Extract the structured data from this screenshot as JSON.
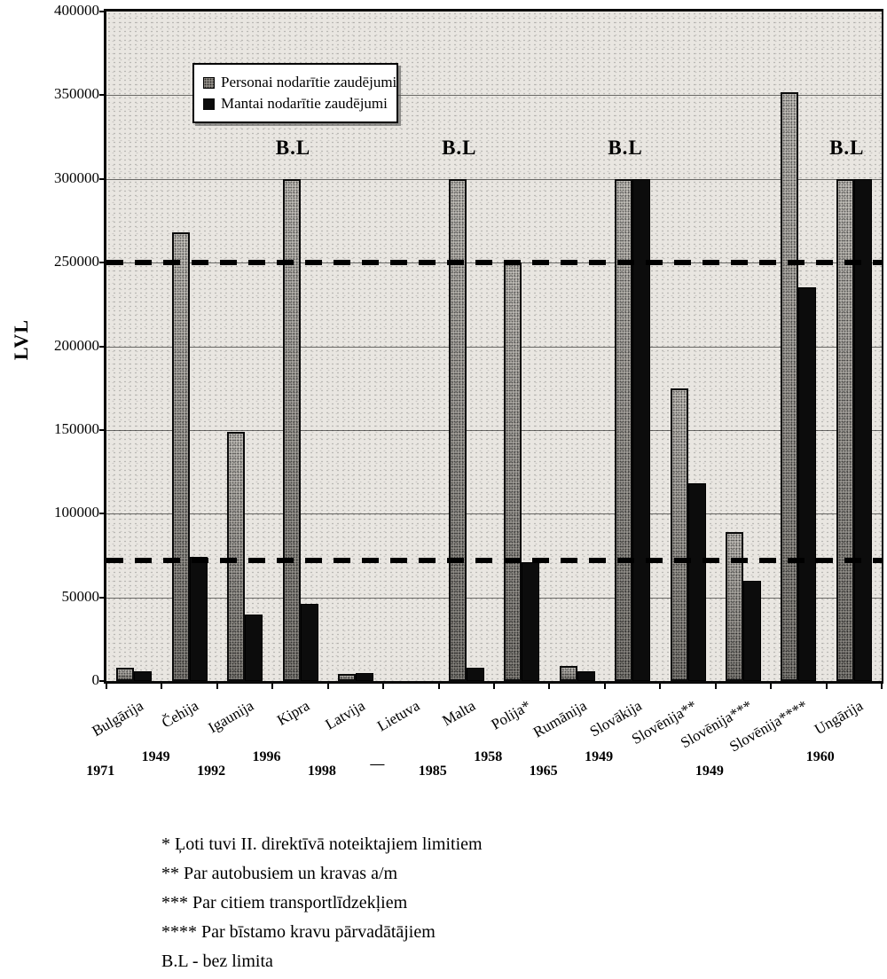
{
  "chart_data": {
    "type": "bar",
    "title": "",
    "xlabel": "",
    "ylabel": "LVL",
    "ylim": [
      0,
      400000
    ],
    "ytick_interval": 50000,
    "ytick_labels": [
      "400000",
      "350000",
      "300000",
      "250000",
      "200000",
      "150000",
      "100000",
      "50000",
      "0"
    ],
    "grid": true,
    "legend_position": "top-left-inside",
    "categories": [
      "Bulgārija",
      "Čehija",
      "Igaunija",
      "Kipra",
      "Latvija",
      "Lietuva",
      "Malta",
      "Polija*",
      "Rumānija",
      "Slovākija",
      "Slovēnija**",
      "Slovēnija***",
      "Slovēnija****",
      "Ungārija"
    ],
    "series": [
      {
        "name": "Personai nodarītie zaudējumi",
        "style": "halftone-gray",
        "values": [
          8000,
          268000,
          149000,
          300000,
          4000,
          0,
          300000,
          250000,
          9000,
          300000,
          175000,
          89000,
          352000,
          300000
        ]
      },
      {
        "name": "Mantai nodarītie zaudējumi",
        "style": "black",
        "values": [
          6000,
          74000,
          40000,
          46000,
          5000,
          0,
          8000,
          71000,
          6000,
          300000,
          118000,
          60000,
          235000,
          300000
        ]
      }
    ],
    "years": [
      {
        "label": "1971",
        "row": "lower"
      },
      {
        "label": "1949",
        "row": "upper"
      },
      {
        "label": "1992",
        "row": "lower"
      },
      {
        "label": "1996",
        "row": "upper"
      },
      {
        "label": "1998",
        "row": "lower"
      },
      {
        "label": "—",
        "row": "mid"
      },
      {
        "label": "1985",
        "row": "lower"
      },
      {
        "label": "1958",
        "row": "upper"
      },
      {
        "label": "1965",
        "row": "lower"
      },
      {
        "label": "1949",
        "row": "upper"
      },
      {
        "label": "",
        "row": "lower"
      },
      {
        "label": "1949",
        "row": "lower"
      },
      {
        "label": "",
        "row": "lower"
      },
      {
        "label": "1960",
        "row": "upper"
      }
    ],
    "no_limit_label": "B.L",
    "no_limit_indices": [
      3,
      6,
      9,
      13
    ],
    "no_limit_bar_value": 300000,
    "dashed_reference_lines": [
      250000,
      72000
    ]
  },
  "footnotes": [
    "* Ļoti tuvi II. direktīvā noteiktajiem limitiem",
    "** Par autobusiem un kravas a/m",
    "*** Par citiem transportlīdzekļiem",
    "**** Par bīstamo kravu pārvadātājiem",
    "B.L - bez limita"
  ]
}
